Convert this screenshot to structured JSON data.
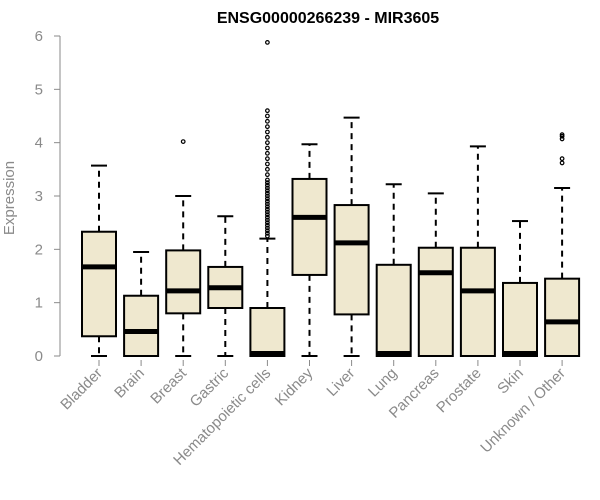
{
  "chart_data": {
    "type": "boxplot",
    "title": "ENSG00000266239 - MIR3605",
    "xlabel": "",
    "ylabel": "Expression",
    "ylim": [
      0,
      6
    ],
    "yticks": [
      "0",
      "1",
      "2",
      "3",
      "4",
      "5",
      "6"
    ],
    "grid": false,
    "box_fill": "#efe8cf",
    "categories": [
      "Bladder",
      "Brain",
      "Breast",
      "Gastric",
      "Hematopoietic cells",
      "Kidney",
      "Liver",
      "Lung",
      "Pancreas",
      "Prostate",
      "Skin",
      "Unknown / Other"
    ],
    "boxes": [
      {
        "name": "Bladder",
        "whisker_low": 0,
        "q1": 0.37,
        "median": 1.67,
        "q3": 2.33,
        "whisker_high": 3.57,
        "outliers": []
      },
      {
        "name": "Brain",
        "whisker_low": 0,
        "q1": 0,
        "median": 0.46,
        "q3": 1.13,
        "whisker_high": 1.95,
        "outliers": []
      },
      {
        "name": "Breast",
        "whisker_low": 0,
        "q1": 0.8,
        "median": 1.22,
        "q3": 1.98,
        "whisker_high": 3.0,
        "outliers": [
          4.02
        ]
      },
      {
        "name": "Gastric",
        "whisker_low": 0,
        "q1": 0.9,
        "median": 1.28,
        "q3": 1.67,
        "whisker_high": 2.62,
        "outliers": []
      },
      {
        "name": "Hematopoietic cells",
        "whisker_low": 0,
        "q1": 0,
        "median": 0.02,
        "q3": 0.9,
        "whisker_high": 2.2,
        "outliers": [
          2.25,
          2.3,
          2.35,
          2.4,
          2.45,
          2.5,
          2.55,
          2.6,
          2.65,
          2.7,
          2.75,
          2.8,
          2.85,
          2.9,
          2.95,
          3.0,
          3.05,
          3.1,
          3.15,
          3.2,
          3.25,
          3.3,
          3.4,
          3.5,
          3.6,
          3.7,
          3.8,
          3.9,
          4.0,
          4.1,
          4.2,
          4.3,
          4.4,
          4.5,
          4.6,
          5.88
        ]
      },
      {
        "name": "Kidney",
        "whisker_low": 0,
        "q1": 1.52,
        "median": 2.6,
        "q3": 3.32,
        "whisker_high": 3.97,
        "outliers": []
      },
      {
        "name": "Liver",
        "whisker_low": 0,
        "q1": 0.78,
        "median": 2.12,
        "q3": 2.83,
        "whisker_high": 4.47,
        "outliers": []
      },
      {
        "name": "Lung",
        "whisker_low": 0,
        "q1": 0,
        "median": 0.02,
        "q3": 1.71,
        "whisker_high": 3.22,
        "outliers": []
      },
      {
        "name": "Pancreas",
        "whisker_low": 0,
        "q1": 0,
        "median": 1.56,
        "q3": 2.03,
        "whisker_high": 3.05,
        "outliers": []
      },
      {
        "name": "Prostate",
        "whisker_low": 0,
        "q1": 0,
        "median": 1.22,
        "q3": 2.03,
        "whisker_high": 3.93,
        "outliers": []
      },
      {
        "name": "Skin",
        "whisker_low": 0,
        "q1": 0,
        "median": 0.02,
        "q3": 1.37,
        "whisker_high": 2.53,
        "outliers": []
      },
      {
        "name": "Unknown / Other",
        "whisker_low": 0,
        "q1": 0,
        "median": 0.64,
        "q3": 1.45,
        "whisker_high": 3.15,
        "outliers": [
          3.62,
          3.7,
          4.07,
          4.12,
          4.15
        ]
      }
    ]
  }
}
